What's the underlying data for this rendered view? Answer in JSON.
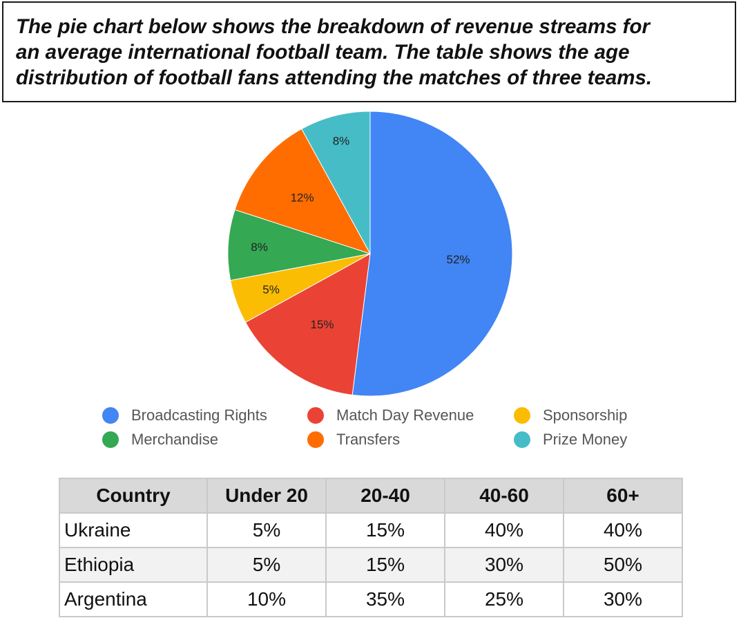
{
  "title": "The pie chart below shows the breakdown of revenue streams for an average international football team. The table shows the age distribution of football fans attending the matches of three teams.",
  "title_lines": [
    "The pie chart below shows the breakdown of revenue streams for",
    "an average international football team. The table shows the age",
    "distribution of football fans attending the matches of three teams."
  ],
  "chart_data": [
    {
      "type": "pie",
      "title": "",
      "slices": [
        {
          "label": "Broadcasting Rights",
          "value": 52,
          "display": "52%",
          "color": "#4285f4"
        },
        {
          "label": "Match Day Revenue",
          "value": 15,
          "display": "15%",
          "color": "#ea4335"
        },
        {
          "label": "Sponsorship",
          "value": 5,
          "display": "5%",
          "color": "#fbbc04"
        },
        {
          "label": "Merchandise",
          "value": 8,
          "display": "8%",
          "color": "#34a853"
        },
        {
          "label": "Transfers",
          "value": 12,
          "display": "12%",
          "color": "#ff6d01"
        },
        {
          "label": "Prize Money",
          "value": 8,
          "display": "8%",
          "color": "#46bdc6"
        }
      ],
      "legend": [
        {
          "label": "Broadcasting Rights",
          "color": "#4285f4"
        },
        {
          "label": "Match Day Revenue",
          "color": "#ea4335"
        },
        {
          "label": "Sponsorship",
          "color": "#fbbc04"
        },
        {
          "label": "Merchandise",
          "color": "#34a853"
        },
        {
          "label": "Transfers",
          "color": "#ff6d01"
        },
        {
          "label": "Prize Money",
          "color": "#46bdc6"
        }
      ],
      "legend_position": "bottom"
    },
    {
      "type": "table",
      "columns": [
        "Country",
        "Under 20",
        "20-40",
        "40-60",
        "60+"
      ],
      "rows": [
        [
          "Ukraine",
          "5%",
          "15%",
          "40%",
          "40%"
        ],
        [
          "Ethiopia",
          "5%",
          "15%",
          "30%",
          "50%"
        ],
        [
          "Argentina",
          "10%",
          "35%",
          "25%",
          "30%"
        ]
      ]
    }
  ]
}
